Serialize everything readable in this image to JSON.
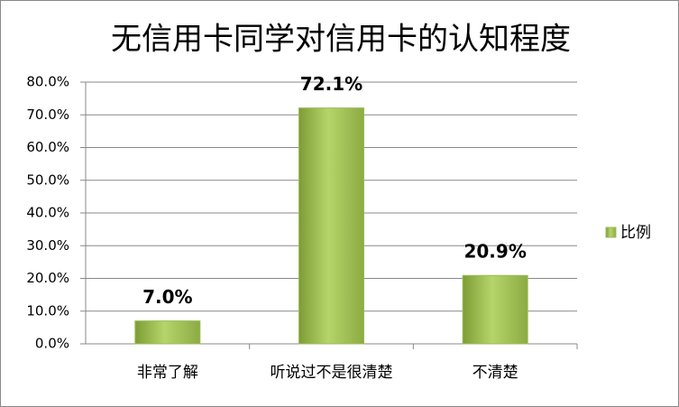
{
  "chart_data": {
    "type": "bar",
    "title": "无信用卡同学对信用卡的认知程度",
    "categories": [
      "非常了解",
      "听说过不是很清楚",
      "不清楚"
    ],
    "series": [
      {
        "name": "比例",
        "color": "#9bbb59",
        "values": [
          7.0,
          72.1,
          20.9
        ],
        "value_labels": [
          "7.0%",
          "72.1%",
          "20.9%"
        ]
      }
    ],
    "ylim": [
      0,
      80
    ],
    "yticks": [
      {
        "value": 0,
        "label": "0.0%"
      },
      {
        "value": 10,
        "label": "10.0%"
      },
      {
        "value": 20,
        "label": "20.0%"
      },
      {
        "value": 30,
        "label": "30.0%"
      },
      {
        "value": 40,
        "label": "40.0%"
      },
      {
        "value": 50,
        "label": "50.0%"
      },
      {
        "value": 60,
        "label": "60.0%"
      },
      {
        "value": 70,
        "label": "70.0%"
      },
      {
        "value": 80,
        "label": "80.0%"
      }
    ],
    "grid": true,
    "legend": "right"
  }
}
